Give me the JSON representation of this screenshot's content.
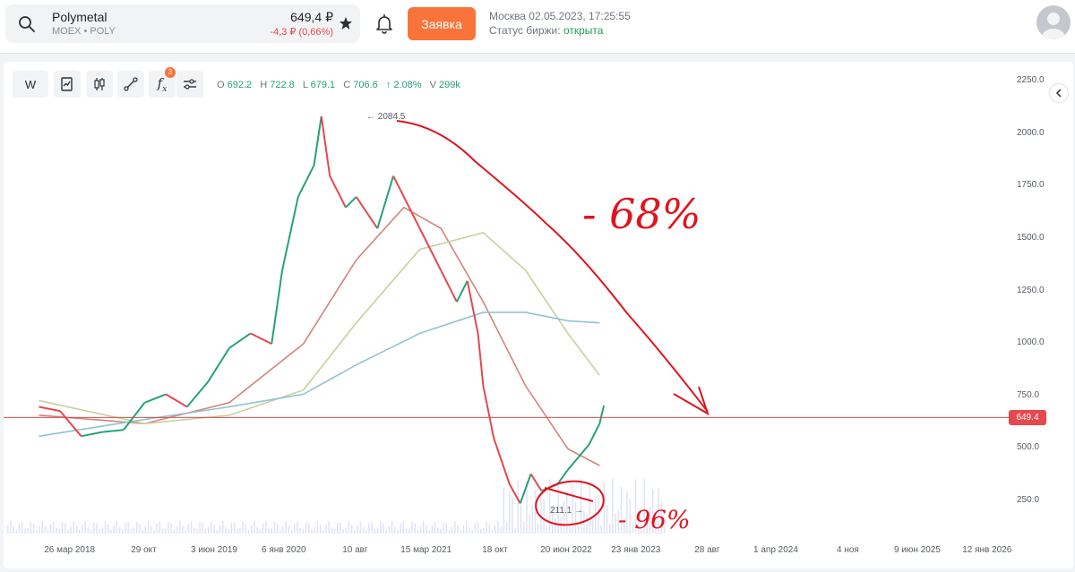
{
  "header": {
    "ticker_name": "Polymetal",
    "ticker_sub": "MOEX • POLY",
    "price": "649,4 ₽",
    "change": "-4,3 ₽ (0,66%)",
    "order_button": "Заявка",
    "market_time": "Москва 02.05.2023, 17:25:55",
    "market_status_label": "Статус биржи:",
    "market_status_value": "открыта",
    "colors": {
      "accent": "#f8743a",
      "down": "#e5484d",
      "up": "#26a17b"
    }
  },
  "toolbar": {
    "interval": "W",
    "indicators_badge": "3",
    "ohlc": {
      "o_label": "O",
      "o": "692.2",
      "h_label": "H",
      "h": "722.8",
      "l_label": "L",
      "l": "679.1",
      "c_label": "C",
      "c": "706.6",
      "chg": "↑ 2.08%",
      "v_label": "V",
      "v": "299k"
    }
  },
  "chart_data": {
    "type": "line",
    "y_ticks": [
      "2250.0",
      "2000.0",
      "1750.0",
      "1500.0",
      "1250.0",
      "1000.0",
      "750.0",
      "500.0",
      "250.0"
    ],
    "x_ticks": [
      "26 мар 2018",
      "29 окт",
      "3 июн 2019",
      "6 янв 2020",
      "10 авг",
      "15 мар 2021",
      "18 окт",
      "20 июн 2022",
      "23 янв 2023",
      "28 авг",
      "1 апр 2024",
      "4 ноя",
      "9 июн 2025",
      "12 янв 2026"
    ],
    "ylim": [
      0,
      2250
    ],
    "last_price_label": "649.4",
    "max_label": "← 2084.5",
    "min_label": "211.1 →",
    "annotations": [
      "- 68%",
      "- 96%"
    ],
    "price_series": [
      [
        2018.0,
        700
      ],
      [
        2018.2,
        680
      ],
      [
        2018.4,
        560
      ],
      [
        2018.6,
        580
      ],
      [
        2018.8,
        590
      ],
      [
        2019.0,
        720
      ],
      [
        2019.2,
        760
      ],
      [
        2019.4,
        700
      ],
      [
        2019.6,
        820
      ],
      [
        2019.8,
        980
      ],
      [
        2020.0,
        1050
      ],
      [
        2020.2,
        1000
      ],
      [
        2020.3,
        1350
      ],
      [
        2020.45,
        1700
      ],
      [
        2020.6,
        1850
      ],
      [
        2020.67,
        2084
      ],
      [
        2020.75,
        1800
      ],
      [
        2020.9,
        1650
      ],
      [
        2021.0,
        1700
      ],
      [
        2021.2,
        1550
      ],
      [
        2021.35,
        1800
      ],
      [
        2021.5,
        1650
      ],
      [
        2021.65,
        1500
      ],
      [
        2021.8,
        1350
      ],
      [
        2021.95,
        1200
      ],
      [
        2022.05,
        1300
      ],
      [
        2022.15,
        1050
      ],
      [
        2022.2,
        800
      ],
      [
        2022.3,
        550
      ],
      [
        2022.45,
        330
      ],
      [
        2022.55,
        240
      ],
      [
        2022.65,
        380
      ],
      [
        2022.75,
        300
      ],
      [
        2022.9,
        330
      ],
      [
        2023.0,
        400
      ],
      [
        2023.1,
        460
      ],
      [
        2023.2,
        520
      ],
      [
        2023.3,
        620
      ],
      [
        2023.34,
        706
      ]
    ],
    "series": [
      {
        "values": [
          [
            2018.0,
            660
          ],
          [
            2019.0,
            620
          ],
          [
            2019.8,
            720
          ],
          [
            2020.5,
            1000
          ],
          [
            2021.0,
            1400
          ],
          [
            2021.45,
            1650
          ],
          [
            2021.8,
            1550
          ],
          [
            2022.2,
            1200
          ],
          [
            2022.6,
            800
          ],
          [
            2023.0,
            500
          ],
          [
            2023.3,
            420
          ]
        ],
        "color": "#d4837c"
      },
      {
        "values": [
          [
            2018.0,
            730
          ],
          [
            2019.0,
            620
          ],
          [
            2019.8,
            660
          ],
          [
            2020.5,
            780
          ],
          [
            2021.0,
            1100
          ],
          [
            2021.6,
            1450
          ],
          [
            2022.2,
            1530
          ],
          [
            2022.6,
            1350
          ],
          [
            2023.0,
            1050
          ],
          [
            2023.3,
            850
          ]
        ],
        "color": "#c9cf9e"
      },
      {
        "values": [
          [
            2018.0,
            560
          ],
          [
            2019.0,
            640
          ],
          [
            2019.8,
            700
          ],
          [
            2020.5,
            760
          ],
          [
            2021.0,
            900
          ],
          [
            2021.6,
            1050
          ],
          [
            2022.2,
            1150
          ],
          [
            2022.6,
            1150
          ],
          [
            2023.0,
            1110
          ],
          [
            2023.3,
            1100
          ]
        ],
        "color": "#8fc4d0"
      }
    ]
  }
}
